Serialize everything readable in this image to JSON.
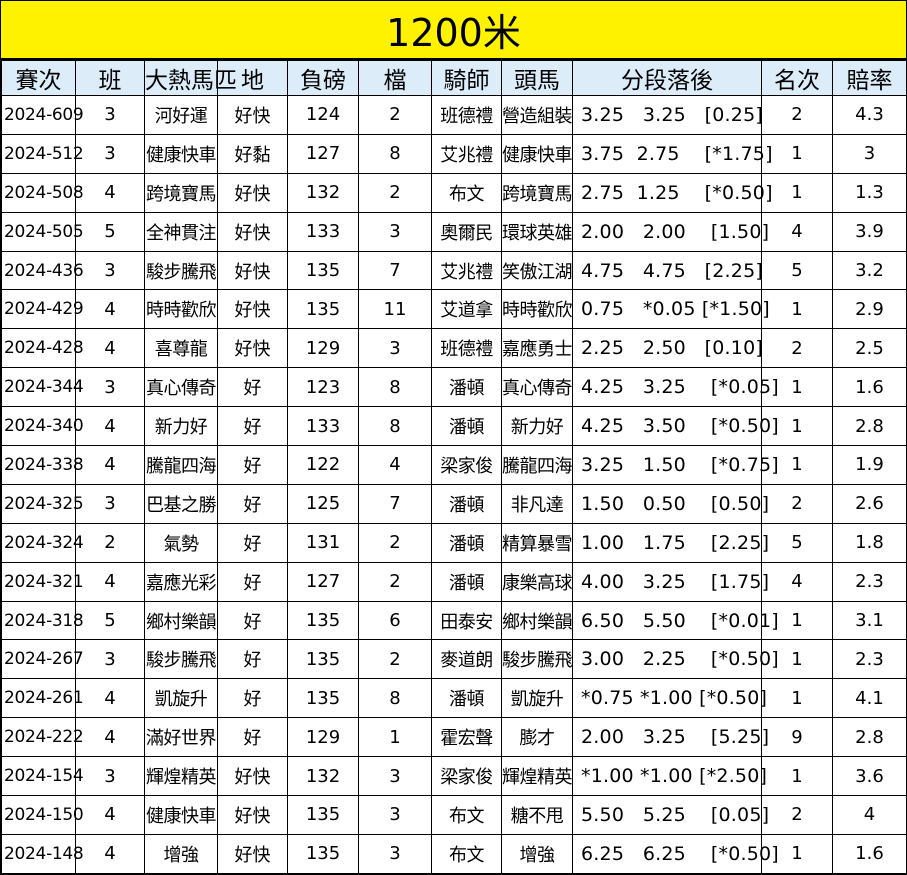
{
  "title": "1200米",
  "headers": [
    "賽次",
    "班",
    "大熱馬匹",
    "地",
    "負磅",
    "檔",
    "騎師",
    "頭馬",
    "分段落後",
    "名次",
    "賠率"
  ],
  "rows": [
    {
      "race": "2024-609",
      "cls": "3",
      "horse": "河好運",
      "going": "好快",
      "weight": "124",
      "draw": "2",
      "jockey": "班德禮",
      "winner": "營造組裝",
      "sect": "3.25   3.25   [0.25]",
      "place": "2",
      "odds": "4.3"
    },
    {
      "race": "2024-512",
      "cls": "3",
      "horse": "健康快車",
      "going": "好黏",
      "weight": "127",
      "draw": "8",
      "jockey": "艾兆禮",
      "winner": "健康快車",
      "sect": "3.75  2.75    [*1.75]",
      "place": "1",
      "odds": "3"
    },
    {
      "race": "2024-508",
      "cls": "4",
      "horse": "跨境寶馬",
      "going": "好快",
      "weight": "132",
      "draw": "2",
      "jockey": "布文",
      "winner": "跨境寶馬",
      "sect": "2.75  1.25    [*0.50]",
      "place": "1",
      "odds": "1.3"
    },
    {
      "race": "2024-505",
      "cls": "5",
      "horse": "全神貫注",
      "going": "好快",
      "weight": "133",
      "draw": "3",
      "jockey": "奧爾民",
      "winner": "環球英雄",
      "sect": "2.00   2.00    [1.50]",
      "place": "4",
      "odds": "3.9"
    },
    {
      "race": "2024-436",
      "cls": "3",
      "horse": "駿步騰飛",
      "going": "好快",
      "weight": "135",
      "draw": "7",
      "jockey": "艾兆禮",
      "winner": "笑傲江湖",
      "sect": "4.75   4.75   [2.25]",
      "place": "5",
      "odds": "3.2"
    },
    {
      "race": "2024-429",
      "cls": "4",
      "horse": "時時歡欣",
      "going": "好快",
      "weight": "135",
      "draw": "11",
      "jockey": "艾道拿",
      "winner": "時時歡欣",
      "sect": "0.75   *0.05 [*1.50]",
      "place": "1",
      "odds": "2.9"
    },
    {
      "race": "2024-428",
      "cls": "4",
      "horse": "喜尊龍",
      "going": "好快",
      "weight": "129",
      "draw": "3",
      "jockey": "班德禮",
      "winner": "嘉應勇士",
      "sect": "2.25   2.50   [0.10]",
      "place": "2",
      "odds": "2.5"
    },
    {
      "race": "2024-344",
      "cls": "3",
      "horse": "真心傳奇",
      "going": "好",
      "weight": "123",
      "draw": "8",
      "jockey": "潘頓",
      "winner": "真心傳奇",
      "sect": "4.25   3.25    [*0.05]",
      "place": "1",
      "odds": "1.6"
    },
    {
      "race": "2024-340",
      "cls": "4",
      "horse": "新力好",
      "going": "好",
      "weight": "133",
      "draw": "8",
      "jockey": "潘頓",
      "winner": "新力好",
      "sect": "4.25   3.50    [*0.50]",
      "place": "1",
      "odds": "2.8"
    },
    {
      "race": "2024-338",
      "cls": "4",
      "horse": "騰龍四海",
      "going": "好",
      "weight": "122",
      "draw": "4",
      "jockey": "梁家俊",
      "winner": "騰龍四海",
      "sect": "3.25   1.50    [*0.75]",
      "place": "1",
      "odds": "1.9"
    },
    {
      "race": "2024-325",
      "cls": "3",
      "horse": "巴基之勝",
      "going": "好",
      "weight": "125",
      "draw": "7",
      "jockey": "潘頓",
      "winner": "非凡達",
      "sect": "1.50   0.50    [0.50]",
      "place": "2",
      "odds": "2.6"
    },
    {
      "race": "2024-324",
      "cls": "2",
      "horse": "氣勢",
      "going": "好",
      "weight": "131",
      "draw": "2",
      "jockey": "潘頓",
      "winner": "精算暴雪",
      "sect": "1.00   1.75    [2.25]",
      "place": "5",
      "odds": "1.8"
    },
    {
      "race": "2024-321",
      "cls": "4",
      "horse": "嘉應光彩",
      "going": "好",
      "weight": "127",
      "draw": "2",
      "jockey": "潘頓",
      "winner": "康樂高球",
      "sect": "4.00   3.25    [1.75]",
      "place": "4",
      "odds": "2.3"
    },
    {
      "race": "2024-318",
      "cls": "5",
      "horse": "鄉村樂韻",
      "going": "好",
      "weight": "135",
      "draw": "6",
      "jockey": "田泰安",
      "winner": "鄉村樂韻",
      "sect": "6.50   5.50    [*0.01]",
      "place": "1",
      "odds": "3.1"
    },
    {
      "race": "2024-267",
      "cls": "3",
      "horse": "駿步騰飛",
      "going": "好",
      "weight": "135",
      "draw": "2",
      "jockey": "麥道朗",
      "winner": "駿步騰飛",
      "sect": "3.00   2.25    [*0.50]",
      "place": "1",
      "odds": "2.3"
    },
    {
      "race": "2024-261",
      "cls": "4",
      "horse": "凱旋升",
      "going": "好",
      "weight": "135",
      "draw": "8",
      "jockey": "潘頓",
      "winner": "凱旋升",
      "sect": "*0.75 *1.00 [*0.50]",
      "place": "1",
      "odds": "4.1"
    },
    {
      "race": "2024-222",
      "cls": "4",
      "horse": "滿好世界",
      "going": "好",
      "weight": "129",
      "draw": "1",
      "jockey": "霍宏聲",
      "winner": "膨才",
      "sect": "2.00   3.25    [5.25]",
      "place": "9",
      "odds": "2.8"
    },
    {
      "race": "2024-154",
      "cls": "3",
      "horse": "輝煌精英",
      "going": "好快",
      "weight": "132",
      "draw": "3",
      "jockey": "梁家俊",
      "winner": "輝煌精英",
      "sect": "*1.00 *1.00 [*2.50]",
      "place": "1",
      "odds": "3.6"
    },
    {
      "race": "2024-150",
      "cls": "4",
      "horse": "健康快車",
      "going": "好快",
      "weight": "135",
      "draw": "3",
      "jockey": "布文",
      "winner": "糖不甩",
      "sect": "5.50   5.25    [0.05]",
      "place": "2",
      "odds": "4"
    },
    {
      "race": "2024-148",
      "cls": "4",
      "horse": "增強",
      "going": "好快",
      "weight": "135",
      "draw": "3",
      "jockey": "布文",
      "winner": "增強",
      "sect": "6.25   6.25    [*0.50]",
      "place": "1",
      "odds": "1.6"
    }
  ],
  "colors": {
    "title_bg": "#fff200",
    "header_bg": "#dcecf9",
    "grid": "#000000"
  }
}
